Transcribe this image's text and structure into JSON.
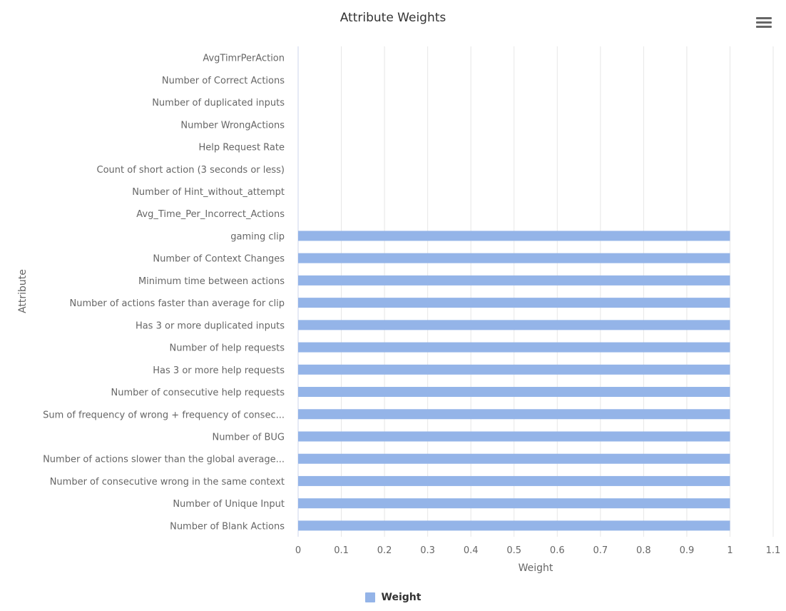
{
  "chart_data": {
    "type": "bar",
    "orientation": "horizontal",
    "title": "Attribute Weights",
    "xlabel": "Weight",
    "ylabel": "Attribute",
    "xlim": [
      0,
      1.1
    ],
    "xticks": [
      "0",
      "0.1",
      "0.2",
      "0.3",
      "0.4",
      "0.5",
      "0.6",
      "0.7",
      "0.8",
      "0.9",
      "1",
      "1.1"
    ],
    "grid": true,
    "legend_position": "bottom",
    "categories": [
      "AvgTimrPerAction",
      "Number of Correct Actions",
      "Number of duplicated inputs",
      "Number WrongActions",
      "Help Request Rate",
      "Count of short action (3 seconds or less)",
      "Number of Hint_without_attempt",
      "Avg_Time_Per_Incorrect_Actions",
      "gaming clip",
      "Number of Context Changes",
      "Minimum time between actions",
      "Number of actions faster than average for clip",
      "Has 3 or more duplicated inputs",
      "Number of help requests",
      "Has 3 or more help requests",
      "Number of consecutive help requests",
      "Sum of frequency of wrong + frequency of consec...",
      "Number of BUG",
      "Number of actions slower than the global average...",
      "Number of consecutive wrong in the same context",
      "Number of Unique Input",
      "Number of Blank Actions"
    ],
    "series": [
      {
        "name": "Weight",
        "color": "#94b4e8",
        "values": [
          0,
          0,
          0,
          0,
          0,
          0,
          0,
          0,
          1,
          1,
          1,
          1,
          1,
          1,
          1,
          1,
          1,
          1,
          1,
          1,
          1,
          1
        ]
      }
    ]
  },
  "menu_icon": "hamburger-menu-icon"
}
